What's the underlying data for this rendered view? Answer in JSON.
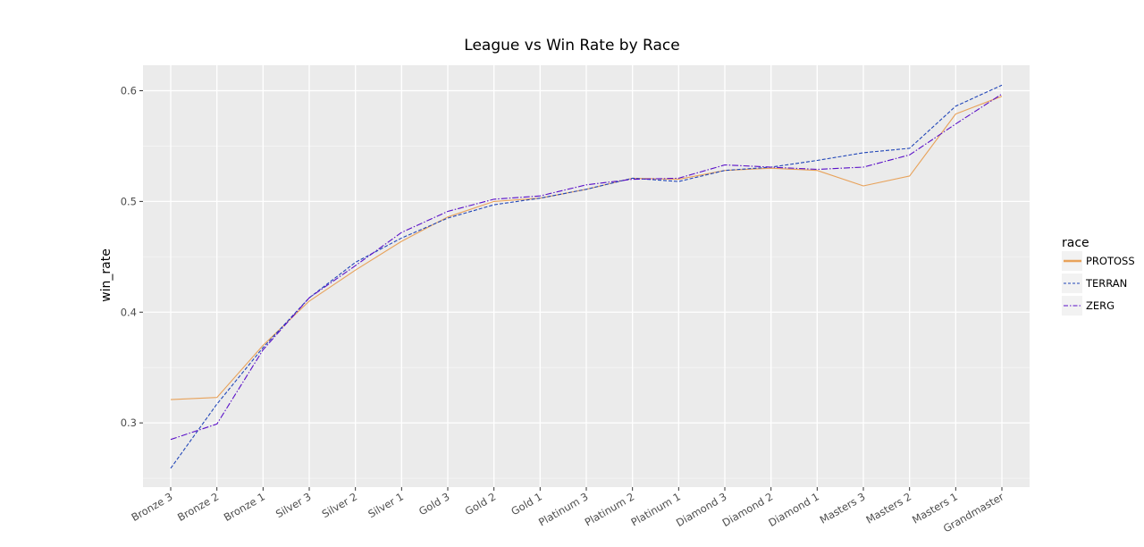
{
  "chart_data": {
    "type": "line",
    "title": "League vs Win Rate by Race",
    "xlabel": "",
    "ylabel": "win_rate",
    "categories": [
      "Bronze 3",
      "Bronze 2",
      "Bronze 1",
      "Silver 3",
      "Silver 2",
      "Silver 1",
      "Gold 3",
      "Gold 2",
      "Gold 1",
      "Platinum 3",
      "Platinum 2",
      "Platinum 1",
      "Diamond 3",
      "Diamond 2",
      "Diamond 1",
      "Masters 3",
      "Masters 2",
      "Masters 1",
      "Grandmaster"
    ],
    "ylim": [
      0.242,
      0.623
    ],
    "yticks": [
      0.3,
      0.4,
      0.5,
      0.6
    ],
    "ytick_labels": [
      "0.3",
      "0.4",
      "0.5",
      "0.6"
    ],
    "grid": true,
    "legend": {
      "title": "race",
      "position": "right"
    },
    "series": [
      {
        "name": "PROTOSS",
        "color": "#e8a25a",
        "dash": "solid",
        "values": [
          0.321,
          0.323,
          0.37,
          0.41,
          0.438,
          0.464,
          0.486,
          0.5,
          0.503,
          0.511,
          0.521,
          0.52,
          0.528,
          0.53,
          0.528,
          0.514,
          0.523,
          0.579,
          0.595
        ]
      },
      {
        "name": "TERRAN",
        "color": "#2146b8",
        "dash": "dashed",
        "values": [
          0.259,
          0.317,
          0.368,
          0.413,
          0.445,
          0.467,
          0.485,
          0.497,
          0.503,
          0.511,
          0.521,
          0.518,
          0.528,
          0.531,
          0.537,
          0.544,
          0.548,
          0.586,
          0.605
        ]
      },
      {
        "name": "ZERG",
        "color": "#5a10c8",
        "dash": "dashdot",
        "values": [
          0.285,
          0.299,
          0.366,
          0.413,
          0.442,
          0.472,
          0.491,
          0.502,
          0.505,
          0.515,
          0.52,
          0.521,
          0.533,
          0.531,
          0.529,
          0.531,
          0.542,
          0.57,
          0.597
        ]
      }
    ]
  }
}
